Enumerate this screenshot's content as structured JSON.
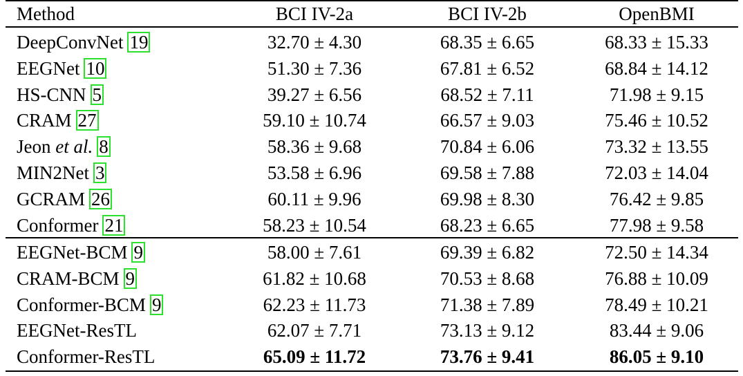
{
  "table": {
    "header": [
      "Method",
      "BCI IV-2a",
      "BCI IV-2b",
      "OpenBMI"
    ],
    "groups": [
      {
        "rows": [
          {
            "method": "DeepConvNet",
            "ref": "19",
            "cells": [
              "32.70 ± 4.30",
              "68.35 ± 6.65",
              "68.33 ± 15.33"
            ]
          },
          {
            "method": "EEGNet",
            "ref": "10",
            "cells": [
              "51.30 ± 7.36",
              "67.81 ± 6.52",
              "68.84 ± 14.12"
            ]
          },
          {
            "method": "HS-CNN",
            "ref": "5",
            "cells": [
              "39.27 ± 6.56",
              "68.52 ± 7.11",
              "71.98 ± 9.15"
            ]
          },
          {
            "method": "CRAM",
            "ref": "27",
            "cells": [
              "59.10 ± 10.74",
              "66.57 ± 9.03",
              "75.46 ± 10.52"
            ]
          },
          {
            "method": "Jeon",
            "method_italic": "et al.",
            "ref": "8",
            "cells": [
              "58.36 ± 9.68",
              "70.84 ± 6.06",
              "73.32 ± 13.55"
            ]
          },
          {
            "method": "MIN2Net",
            "ref": "3",
            "cells": [
              "53.58 ± 6.96",
              "69.58 ± 7.88",
              "72.03 ± 14.04"
            ]
          },
          {
            "method": "GCRAM",
            "ref": "26",
            "cells": [
              "60.11 ± 9.96",
              "69.98 ± 8.30",
              "76.42 ± 9.85"
            ]
          },
          {
            "method": "Conformer",
            "ref": "21",
            "cells": [
              "58.23 ± 10.54",
              "68.23 ± 6.65",
              "77.98 ± 9.58"
            ]
          }
        ]
      },
      {
        "rows": [
          {
            "method": "EEGNet-BCM",
            "ref": "9",
            "cells": [
              "58.00 ± 7.61",
              "69.39 ± 6.82",
              "72.50 ± 14.34"
            ]
          },
          {
            "method": "CRAM-BCM",
            "ref": "9",
            "cells": [
              "61.82 ± 10.68",
              "70.53 ± 8.68",
              "76.88 ± 10.09"
            ]
          },
          {
            "method": "Conformer-BCM",
            "ref": "9",
            "cells": [
              "62.23 ± 11.73",
              "71.38 ± 7.89",
              "78.49 ± 10.21"
            ]
          },
          {
            "method": "EEGNet-ResTL",
            "cells": [
              "62.07 ± 7.71",
              "73.13 ± 9.12",
              "83.44 ± 9.06"
            ]
          },
          {
            "method": "Conformer-ResTL",
            "cells": [
              "65.09 ± 11.72",
              "73.76 ± 9.41",
              "86.05 ± 9.10"
            ]
          }
        ]
      }
    ]
  }
}
